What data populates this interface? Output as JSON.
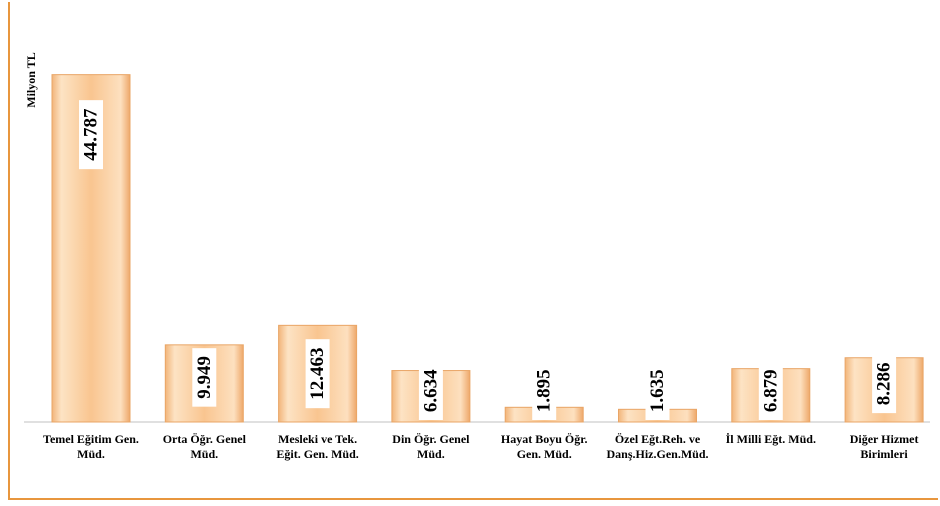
{
  "chart_data": {
    "type": "bar",
    "title": "",
    "xlabel": "",
    "ylabel": "Milyon TL",
    "categories": [
      [
        "Temel Eğitim Gen.",
        "Müd."
      ],
      [
        "Orta Öğr. Genel",
        "Müd."
      ],
      [
        "Mesleki ve Tek.",
        "Eğit. Gen. Müd."
      ],
      [
        "Din Öğr. Genel",
        "Müd."
      ],
      [
        "Hayat Boyu Öğr.",
        "Gen. Müd."
      ],
      [
        "Özel Eğt.Reh. ve",
        "Danş.Hiz.Gen.Müd."
      ],
      [
        "İl Milli Eğt. Müd."
      ],
      [
        "Diğer Hizmet",
        "Birimleri"
      ]
    ],
    "values": [
      44787,
      9949,
      12463,
      6634,
      1895,
      1635,
      6879,
      8286
    ],
    "value_labels": [
      "44.787",
      "9.949",
      "12.463",
      "6.634",
      "1.895",
      "1.635",
      "6.879",
      "8.286"
    ],
    "ylim": [
      0,
      45000
    ],
    "grid": false,
    "legend": "none",
    "colors": {
      "bar_top": "#fde3c4",
      "bar_mid": "#f9c28c",
      "bar_edge": "#e9a566",
      "border": "#e8963e"
    }
  }
}
